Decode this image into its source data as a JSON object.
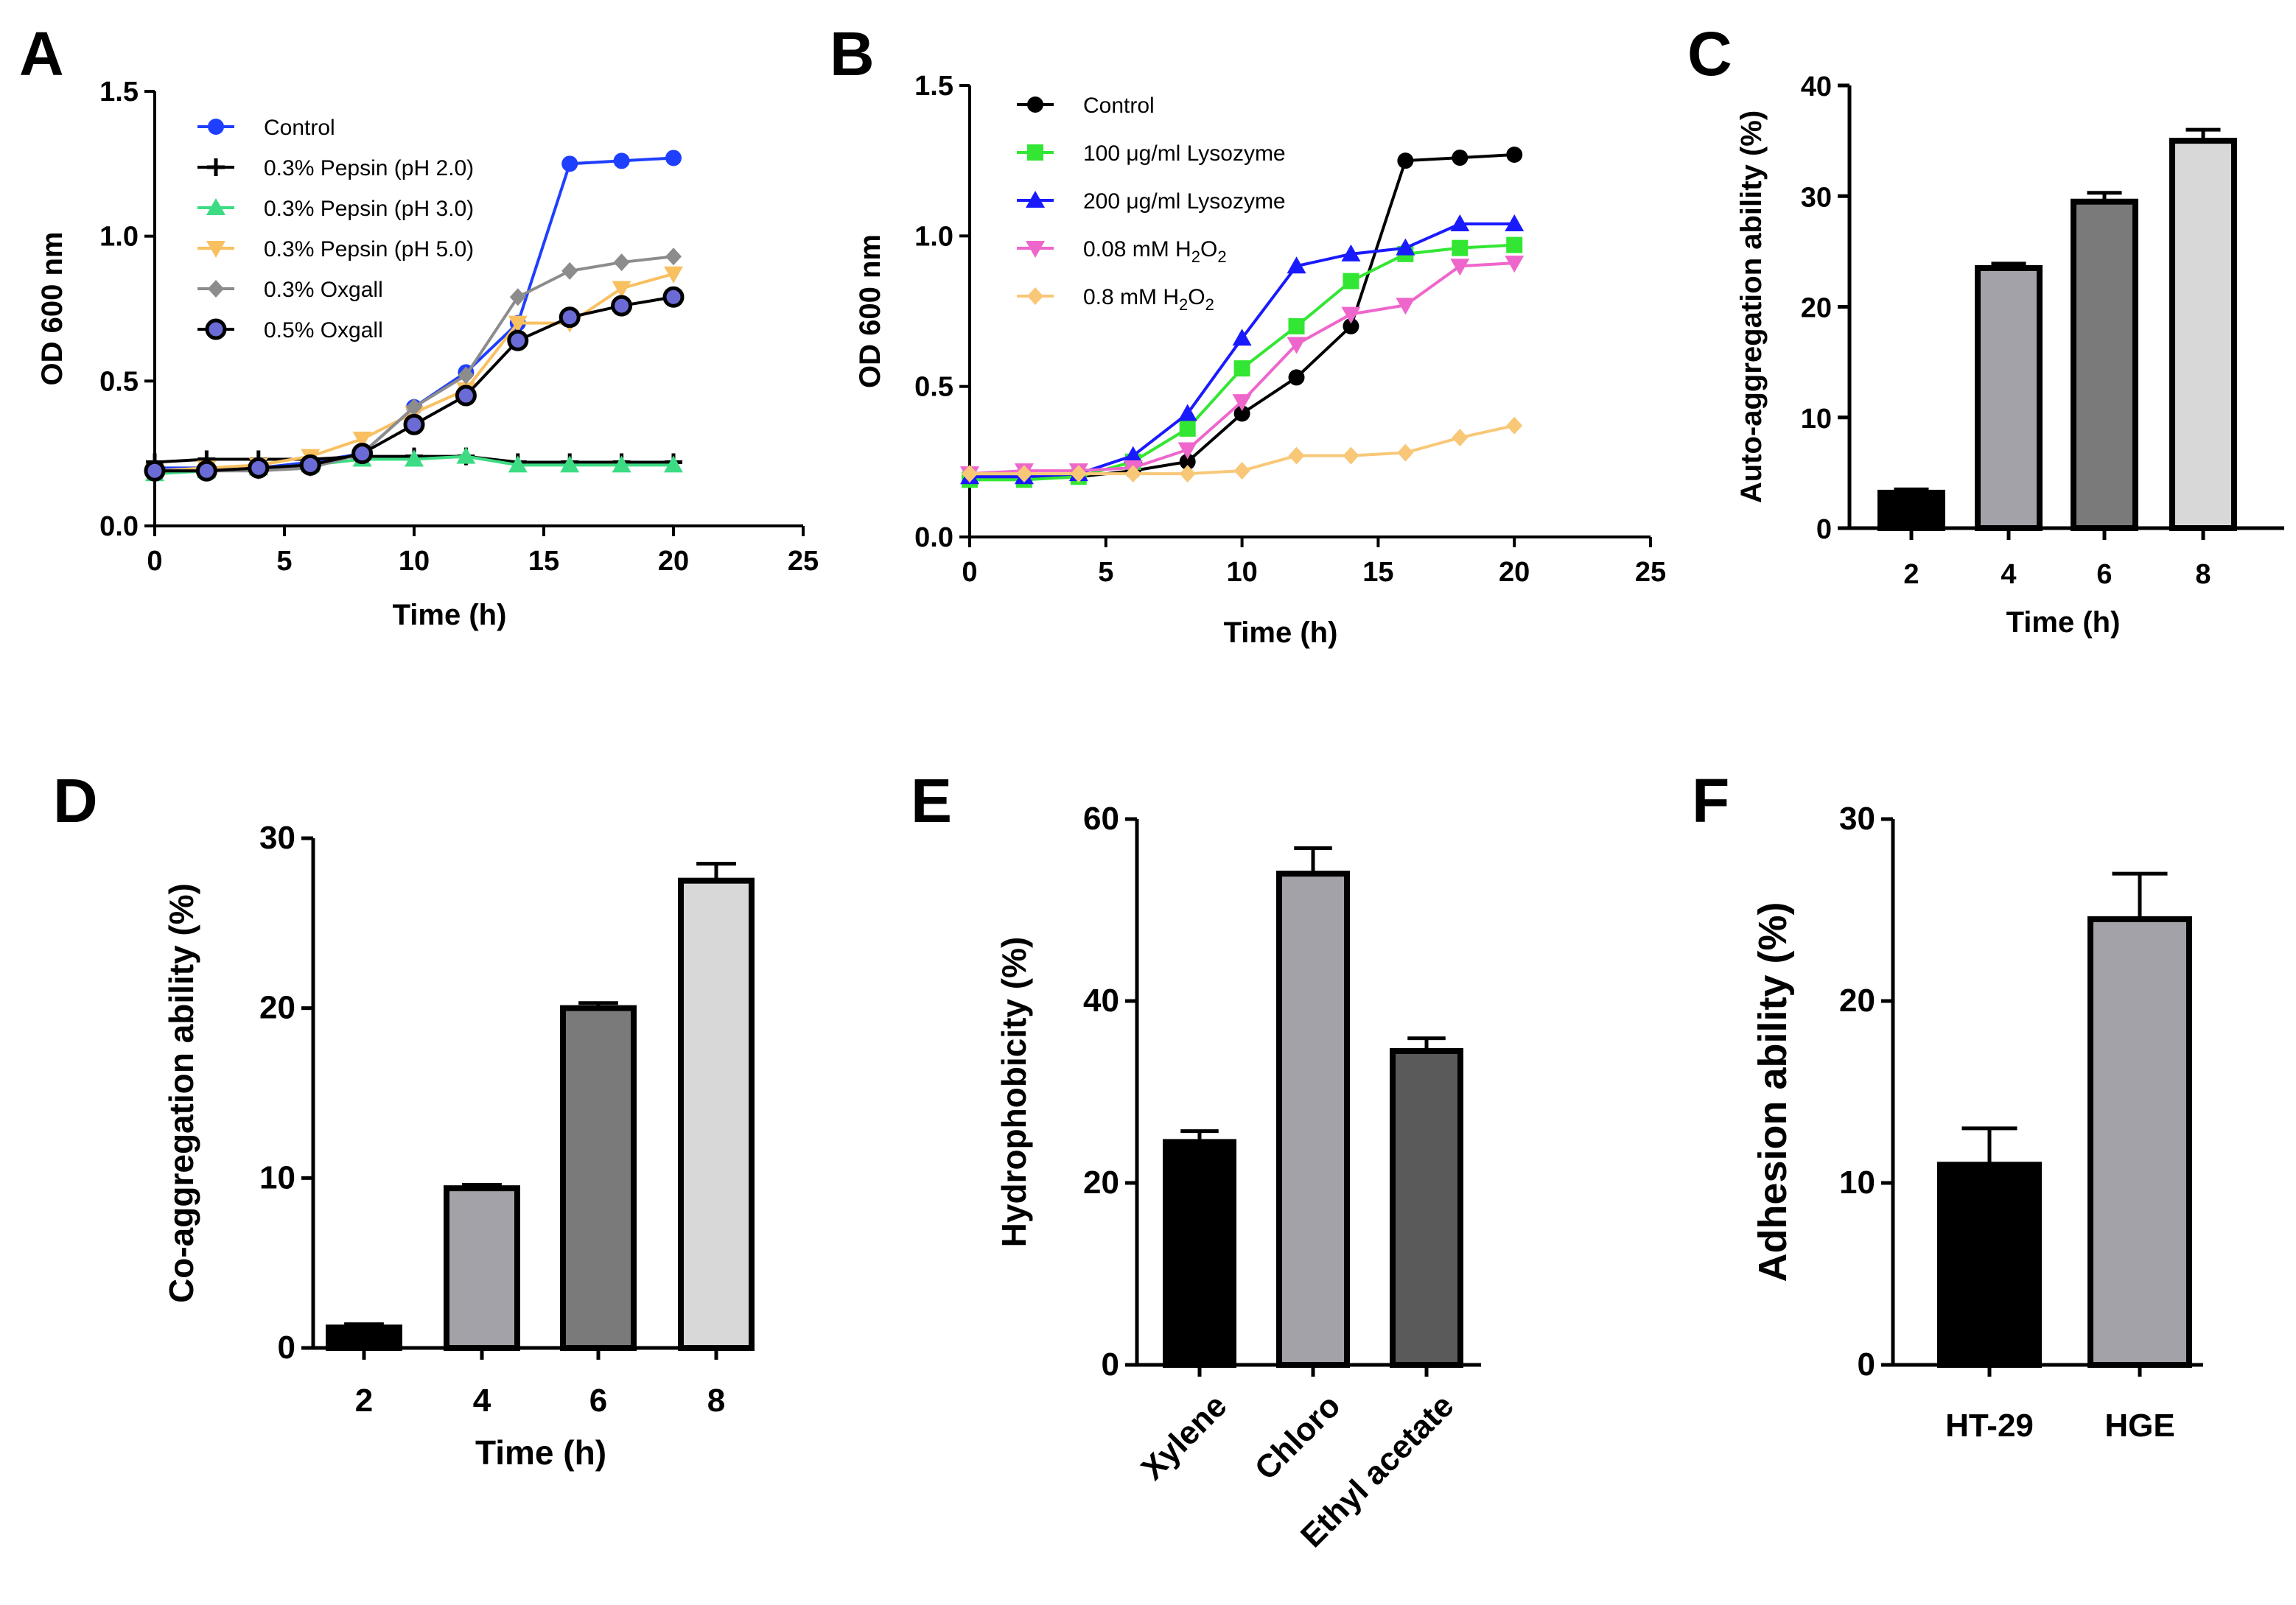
{
  "chart_data": [
    {
      "panel": "A",
      "type": "line",
      "xlabel": "Time (h)",
      "ylabel": "OD 600 nm",
      "xlim": [
        0,
        25
      ],
      "ylim": [
        0,
        1.5
      ],
      "xticks": [
        0,
        5,
        10,
        15,
        20,
        25
      ],
      "yticks": [
        "0.0",
        "0.5",
        "1.0",
        "1.5"
      ],
      "x": [
        0,
        2,
        4,
        6,
        8,
        10,
        12,
        14,
        16,
        18,
        20
      ],
      "legend": "top-left",
      "series": [
        {
          "name": "Control",
          "color": "#1f3fff",
          "marker": "circle",
          "values": [
            0.2,
            0.2,
            0.2,
            0.22,
            0.25,
            0.41,
            0.53,
            0.7,
            1.25,
            1.26,
            1.27
          ]
        },
        {
          "name": "0.3% Pepsin (pH 2.0)",
          "color": "#000000",
          "marker": "plus",
          "values": [
            0.22,
            0.23,
            0.23,
            0.23,
            0.24,
            0.24,
            0.24,
            0.22,
            0.22,
            0.22,
            0.22
          ]
        },
        {
          "name": "0.3% Pepsin (pH 3.0)",
          "color": "#3ddc84",
          "marker": "triangle",
          "values": [
            0.18,
            0.19,
            0.2,
            0.21,
            0.23,
            0.23,
            0.24,
            0.21,
            0.21,
            0.21,
            0.21
          ]
        },
        {
          "name": "0.3% Pepsin (pH 5.0)",
          "color": "#f8c060",
          "marker": "triangle-down",
          "values": [
            0.19,
            0.2,
            0.21,
            0.24,
            0.3,
            0.39,
            0.47,
            0.7,
            0.7,
            0.82,
            0.87
          ]
        },
        {
          "name": "0.3% Oxgall",
          "color": "#8c8c8c",
          "marker": "diamond",
          "values": [
            0.19,
            0.19,
            0.19,
            0.2,
            0.25,
            0.41,
            0.52,
            0.79,
            0.88,
            0.91,
            0.93
          ]
        },
        {
          "name": "0.5% Oxgall",
          "color": "#000000",
          "fill": "#6b6bd6",
          "marker": "ring",
          "values": [
            0.19,
            0.19,
            0.2,
            0.21,
            0.25,
            0.35,
            0.45,
            0.64,
            0.72,
            0.76,
            0.79
          ]
        }
      ]
    },
    {
      "panel": "B",
      "type": "line",
      "xlabel": "Time (h)",
      "ylabel": "OD 600 nm",
      "xlim": [
        0,
        25
      ],
      "ylim": [
        0,
        1.5
      ],
      "xticks": [
        0,
        5,
        10,
        15,
        20,
        25
      ],
      "yticks": [
        "0.0",
        "0.5",
        "1.0",
        "1.5"
      ],
      "x": [
        0,
        2,
        4,
        6,
        8,
        10,
        12,
        14,
        16,
        18,
        20
      ],
      "legend": "top-left",
      "series": [
        {
          "name": "Control",
          "color": "#000000",
          "marker": "circle",
          "values": [
            0.2,
            0.2,
            0.2,
            0.22,
            0.25,
            0.41,
            0.53,
            0.7,
            1.25,
            1.26,
            1.27
          ]
        },
        {
          "name": "100 μg/ml Lysozyme",
          "color": "#33e633",
          "marker": "square",
          "values": [
            0.19,
            0.19,
            0.2,
            0.25,
            0.36,
            0.56,
            0.7,
            0.85,
            0.94,
            0.96,
            0.97
          ]
        },
        {
          "name": "200 μg/ml Lysozyme",
          "color": "#1a1aff",
          "marker": "triangle",
          "values": [
            0.2,
            0.2,
            0.21,
            0.27,
            0.41,
            0.66,
            0.9,
            0.94,
            0.96,
            1.04,
            1.04
          ]
        },
        {
          "name": "0.08 mM H2O2",
          "label_main": "0.08 mM H",
          "label_sub": "2",
          "label_mid": "O",
          "label_sub2": "2",
          "color": "#ee66cc",
          "marker": "triangle-down",
          "values": [
            0.21,
            0.22,
            0.22,
            0.23,
            0.29,
            0.45,
            0.64,
            0.74,
            0.77,
            0.9,
            0.91
          ]
        },
        {
          "name": "0.8 mM H2O2",
          "label_main": "0.8 mM H",
          "label_sub": "2",
          "label_mid": "O",
          "label_sub2": "2",
          "color": "#f8c878",
          "marker": "diamond",
          "values": [
            0.21,
            0.21,
            0.21,
            0.21,
            0.21,
            0.22,
            0.27,
            0.27,
            0.28,
            0.33,
            0.37
          ]
        }
      ]
    },
    {
      "panel": "C",
      "type": "bar",
      "xlabel": "Time (h)",
      "ylabel": "Auto-aggregation ability (%)",
      "ylim": [
        0,
        40
      ],
      "yticks": [
        "0",
        "10",
        "20",
        "30",
        "40"
      ],
      "categories": [
        "2",
        "4",
        "6",
        "8"
      ],
      "values": [
        3.2,
        23.5,
        29.5,
        35
      ],
      "errors": [
        0.3,
        0.4,
        0.8,
        1.0
      ],
      "colors": [
        "#000000",
        "#a2a2a8",
        "#7a7a7a",
        "#d8d8d8"
      ]
    },
    {
      "panel": "D",
      "type": "bar",
      "xlabel": "Time (h)",
      "ylabel": "Co-aggregation ability (%)",
      "ylim": [
        0,
        30
      ],
      "yticks": [
        "0",
        "10",
        "20",
        "30"
      ],
      "categories": [
        "2",
        "4",
        "6",
        "8"
      ],
      "values": [
        1.2,
        9.4,
        20,
        27.5
      ],
      "errors": [
        0.2,
        0.2,
        0.3,
        1.0
      ],
      "colors": [
        "#000000",
        "#a2a2a8",
        "#7a7a7a",
        "#d8d8d8"
      ]
    },
    {
      "panel": "E",
      "type": "bar",
      "xlabel": "",
      "ylabel": "Hydrophobicity (%)",
      "ylim": [
        0,
        60
      ],
      "yticks": [
        "0",
        "20",
        "40",
        "60"
      ],
      "categories": [
        "Xylene",
        "Chloro",
        "Ethyl acetate"
      ],
      "values": [
        24.5,
        54,
        34.5
      ],
      "errors": [
        1.2,
        2.8,
        1.4
      ],
      "colors": [
        "#000000",
        "#a2a2a8",
        "#5a5a5a"
      ]
    },
    {
      "panel": "F",
      "type": "bar",
      "xlabel": "",
      "ylabel": "Adhesion ability (%)",
      "ylim": [
        0,
        30
      ],
      "yticks": [
        "0",
        "10",
        "20",
        "30"
      ],
      "categories": [
        "HT-29",
        "HGE"
      ],
      "values": [
        11,
        24.5
      ],
      "errors": [
        2.0,
        2.5
      ],
      "colors": [
        "#000000",
        "#a2a2a8"
      ]
    }
  ]
}
